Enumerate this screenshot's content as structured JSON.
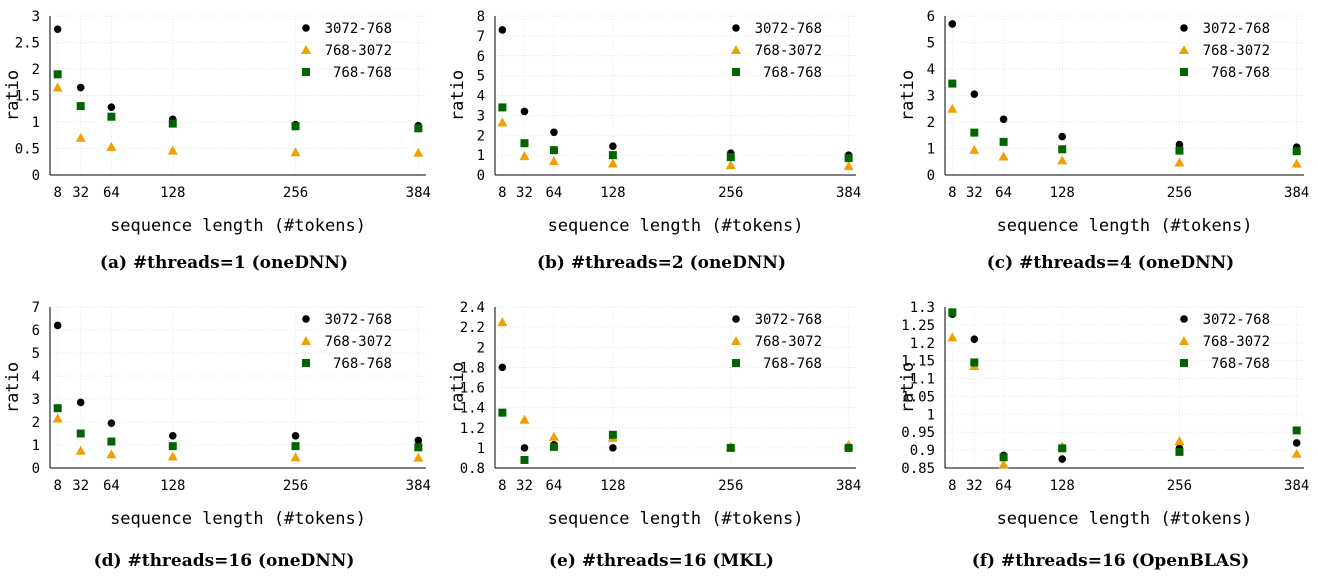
{
  "colors": {
    "series_3072_768": "#000000",
    "series_768_3072": "#f0a000",
    "series_768_768": "#006400",
    "axis": "#000000",
    "grid": "#e6e6e6"
  },
  "chart_data": [
    {
      "type": "scatter",
      "caption": "(a) #threads=1 (oneDNN)",
      "xlabel": "sequence length (#tokens)",
      "ylabel": "ratio",
      "x": [
        8,
        32,
        64,
        128,
        256,
        384
      ],
      "xticks": [
        "8",
        "32",
        "64",
        "128",
        "256",
        "384"
      ],
      "ylim": [
        0,
        3
      ],
      "yticks": [
        "0",
        "0.5",
        "1",
        "1.5",
        "2",
        "2.5",
        "3"
      ],
      "yticks_values": [
        0,
        0.5,
        1,
        1.5,
        2,
        2.5,
        3
      ],
      "grid": true,
      "legend_position": "top-right",
      "series": [
        {
          "name": "3072-768",
          "marker": "circle",
          "values": [
            2.75,
            1.65,
            1.28,
            1.05,
            0.95,
            0.93
          ]
        },
        {
          "name": "768-3072",
          "marker": "triangle",
          "values": [
            1.65,
            0.7,
            0.53,
            0.46,
            0.43,
            0.42
          ]
        },
        {
          "name": "768-768",
          "marker": "square",
          "values": [
            1.9,
            1.3,
            1.1,
            0.97,
            0.92,
            0.88
          ]
        }
      ]
    },
    {
      "type": "scatter",
      "caption": "(b) #threads=2 (oneDNN)",
      "xlabel": "sequence length (#tokens)",
      "ylabel": "ratio",
      "x": [
        8,
        32,
        64,
        128,
        256,
        384
      ],
      "xticks": [
        "8",
        "32",
        "64",
        "128",
        "256",
        "384"
      ],
      "ylim": [
        0,
        8
      ],
      "yticks": [
        "0",
        "1",
        "2",
        "3",
        "4",
        "5",
        "6",
        "7",
        "8"
      ],
      "yticks_values": [
        0,
        1,
        2,
        3,
        4,
        5,
        6,
        7,
        8
      ],
      "grid": true,
      "legend_position": "top-right",
      "series": [
        {
          "name": "3072-768",
          "marker": "circle",
          "values": [
            7.3,
            3.2,
            2.15,
            1.45,
            1.1,
            1.0
          ]
        },
        {
          "name": "768-3072",
          "marker": "triangle",
          "values": [
            2.65,
            0.95,
            0.7,
            0.58,
            0.5,
            0.45
          ]
        },
        {
          "name": "768-768",
          "marker": "square",
          "values": [
            3.4,
            1.6,
            1.25,
            1.0,
            0.9,
            0.85
          ]
        }
      ]
    },
    {
      "type": "scatter",
      "caption": "(c) #threads=4 (oneDNN)",
      "xlabel": "sequence length (#tokens)",
      "ylabel": "ratio",
      "x": [
        8,
        32,
        64,
        128,
        256,
        384
      ],
      "xticks": [
        "8",
        "32",
        "64",
        "128",
        "256",
        "384"
      ],
      "ylim": [
        0,
        6
      ],
      "yticks": [
        "0",
        "1",
        "2",
        "3",
        "4",
        "5",
        "6"
      ],
      "yticks_values": [
        0,
        1,
        2,
        3,
        4,
        5,
        6
      ],
      "grid": true,
      "legend_position": "top-right",
      "series": [
        {
          "name": "3072-768",
          "marker": "circle",
          "values": [
            5.7,
            3.05,
            2.1,
            1.45,
            1.15,
            1.05
          ]
        },
        {
          "name": "768-3072",
          "marker": "triangle",
          "values": [
            2.5,
            0.95,
            0.7,
            0.55,
            0.47,
            0.43
          ]
        },
        {
          "name": "768-768",
          "marker": "square",
          "values": [
            3.45,
            1.6,
            1.25,
            0.97,
            0.92,
            0.9
          ]
        }
      ]
    },
    {
      "type": "scatter",
      "caption": "(d) #threads=16 (oneDNN)",
      "xlabel": "sequence length (#tokens)",
      "ylabel": "ratio",
      "x": [
        8,
        32,
        64,
        128,
        256,
        384
      ],
      "xticks": [
        "8",
        "32",
        "64",
        "128",
        "256",
        "384"
      ],
      "ylim": [
        0,
        7
      ],
      "yticks": [
        "0",
        "1",
        "2",
        "3",
        "4",
        "5",
        "6",
        "7"
      ],
      "yticks_values": [
        0,
        1,
        2,
        3,
        4,
        5,
        6,
        7
      ],
      "grid": true,
      "legend_position": "top-right",
      "series": [
        {
          "name": "3072-768",
          "marker": "circle",
          "values": [
            6.2,
            2.85,
            1.95,
            1.4,
            1.4,
            1.2
          ]
        },
        {
          "name": "768-3072",
          "marker": "triangle",
          "values": [
            2.15,
            0.75,
            0.6,
            0.5,
            0.47,
            0.45
          ]
        },
        {
          "name": "768-768",
          "marker": "square",
          "values": [
            2.6,
            1.5,
            1.15,
            0.95,
            0.95,
            0.9
          ]
        }
      ]
    },
    {
      "type": "scatter",
      "caption": "(e) #threads=16 (MKL)",
      "xlabel": "sequence length (#tokens)",
      "ylabel": "ratio",
      "x": [
        8,
        32,
        64,
        128,
        256,
        384
      ],
      "xticks": [
        "8",
        "32",
        "64",
        "128",
        "256",
        "384"
      ],
      "ylim": [
        0.8,
        2.4
      ],
      "yticks": [
        "0.8",
        "1",
        "1.2",
        "1.4",
        "1.6",
        "1.8",
        "2",
        "2.2",
        "2.4"
      ],
      "yticks_values": [
        0.8,
        1.0,
        1.2,
        1.4,
        1.6,
        1.8,
        2.0,
        2.2,
        2.4
      ],
      "grid": true,
      "legend_position": "top-right",
      "series": [
        {
          "name": "3072-768",
          "marker": "circle",
          "values": [
            1.8,
            1.0,
            1.03,
            1.0,
            1.0,
            1.0
          ]
        },
        {
          "name": "768-3072",
          "marker": "triangle",
          "values": [
            2.25,
            1.28,
            1.11,
            1.1,
            1.01,
            1.03
          ]
        },
        {
          "name": "768-768",
          "marker": "square",
          "values": [
            1.35,
            0.88,
            1.01,
            1.13,
            1.0,
            1.0
          ]
        }
      ]
    },
    {
      "type": "scatter",
      "caption": "(f) #threads=16 (OpenBLAS)",
      "xlabel": "sequence length (#tokens)",
      "ylabel": "ratio",
      "x": [
        8,
        32,
        64,
        128,
        256,
        384
      ],
      "xticks": [
        "8",
        "32",
        "64",
        "128",
        "256",
        "384"
      ],
      "ylim": [
        0.85,
        1.3
      ],
      "yticks": [
        "0.85",
        "0.9",
        "0.95",
        "1",
        "1.05",
        "1.1",
        "1.15",
        "1.2",
        "1.25",
        "1.3"
      ],
      "yticks_values": [
        0.85,
        0.9,
        0.95,
        1.0,
        1.05,
        1.1,
        1.15,
        1.2,
        1.25,
        1.3
      ],
      "grid": true,
      "legend_position": "top-right",
      "series": [
        {
          "name": "3072-768",
          "marker": "circle",
          "values": [
            1.28,
            1.21,
            0.885,
            0.875,
            0.905,
            0.92
          ]
        },
        {
          "name": "768-3072",
          "marker": "triangle",
          "values": [
            1.215,
            1.135,
            0.86,
            0.91,
            0.925,
            0.89
          ]
        },
        {
          "name": "768-768",
          "marker": "square",
          "values": [
            1.285,
            1.145,
            0.88,
            0.905,
            0.895,
            0.955
          ]
        }
      ]
    }
  ]
}
